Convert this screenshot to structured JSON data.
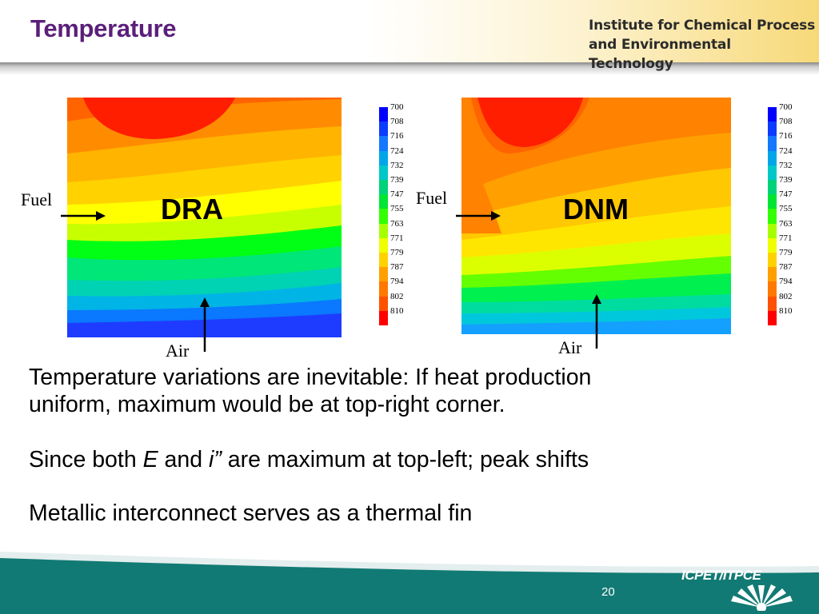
{
  "header": {
    "title": "Temperature",
    "institute_line1": "Institute for Chemical Process",
    "institute_line2": "and Environmental Technology"
  },
  "figure": {
    "panels": [
      {
        "label": "DRA",
        "fuel_label": "Fuel",
        "air_label": "Air"
      },
      {
        "label": "DNM",
        "fuel_label": "Fuel",
        "air_label": "Air"
      }
    ],
    "legend_values": [
      "700",
      "708",
      "716",
      "724",
      "732",
      "739",
      "747",
      "755",
      "763",
      "771",
      "779",
      "787",
      "794",
      "802",
      "810"
    ],
    "legend_colors": [
      "#0000ff",
      "#0a3cff",
      "#1478ff",
      "#00a6e8",
      "#00c8c8",
      "#00d27a",
      "#00e632",
      "#32ff00",
      "#a6ff00",
      "#f0ff00",
      "#ffd200",
      "#ffa000",
      "#ff7800",
      "#ff5000",
      "#ff0000"
    ]
  },
  "body": {
    "line1": "Temperature variations are inevitable: If heat production",
    "line2": "uniform, maximum would be at top-right corner.",
    "line3_pre": "Since both ",
    "line3_e": "E",
    "line3_mid": " and ",
    "line3_i": "i”",
    "line3_post": " are maximum at top-left; peak shifts",
    "line4": "Metallic interconnect serves as a thermal fin"
  },
  "footer": {
    "page_number": "20",
    "logo_text": "ICPET/ITPCE"
  }
}
